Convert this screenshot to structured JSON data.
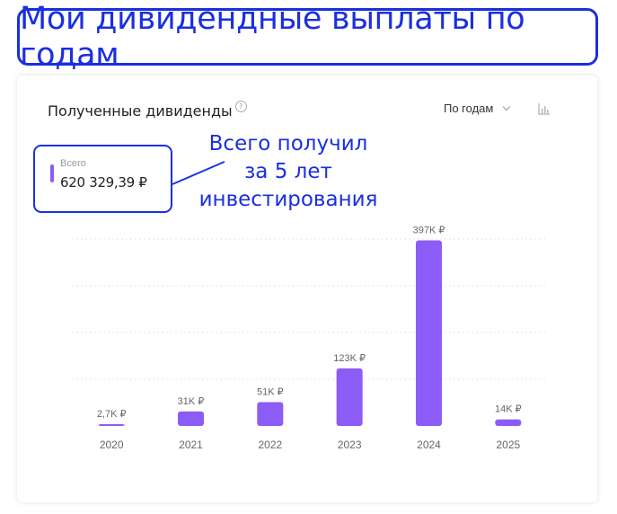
{
  "banner": {
    "title": "Мои дивидендные выплаты по годам"
  },
  "card": {
    "title": "Полученные дивиденды",
    "help_icon": "question-circle-icon",
    "period_select": "По годам",
    "chart_type_icon": "bar-chart-icon"
  },
  "total": {
    "label": "Всего",
    "value": "620 329,39 ₽"
  },
  "annotation": {
    "lines": [
      "Всего получил",
      "за 5 лет",
      "инвестирования"
    ]
  },
  "colors": {
    "bar": "#8b5cf6",
    "accent": "#1a2fe0",
    "grid": "#e6e6e6"
  },
  "chart_data": {
    "type": "bar",
    "categories": [
      "2020",
      "2021",
      "2022",
      "2023",
      "2024",
      "2025"
    ],
    "values": [
      2.7,
      31,
      51,
      123,
      397,
      14
    ],
    "value_units": "K ₽",
    "data_labels": [
      "2,7K ₽",
      "31K ₽",
      "51K ₽",
      "123K ₽",
      "397K ₽",
      "14K ₽"
    ],
    "ylim": [
      0,
      400
    ],
    "grid": true,
    "title": "",
    "xlabel": "",
    "ylabel": ""
  }
}
